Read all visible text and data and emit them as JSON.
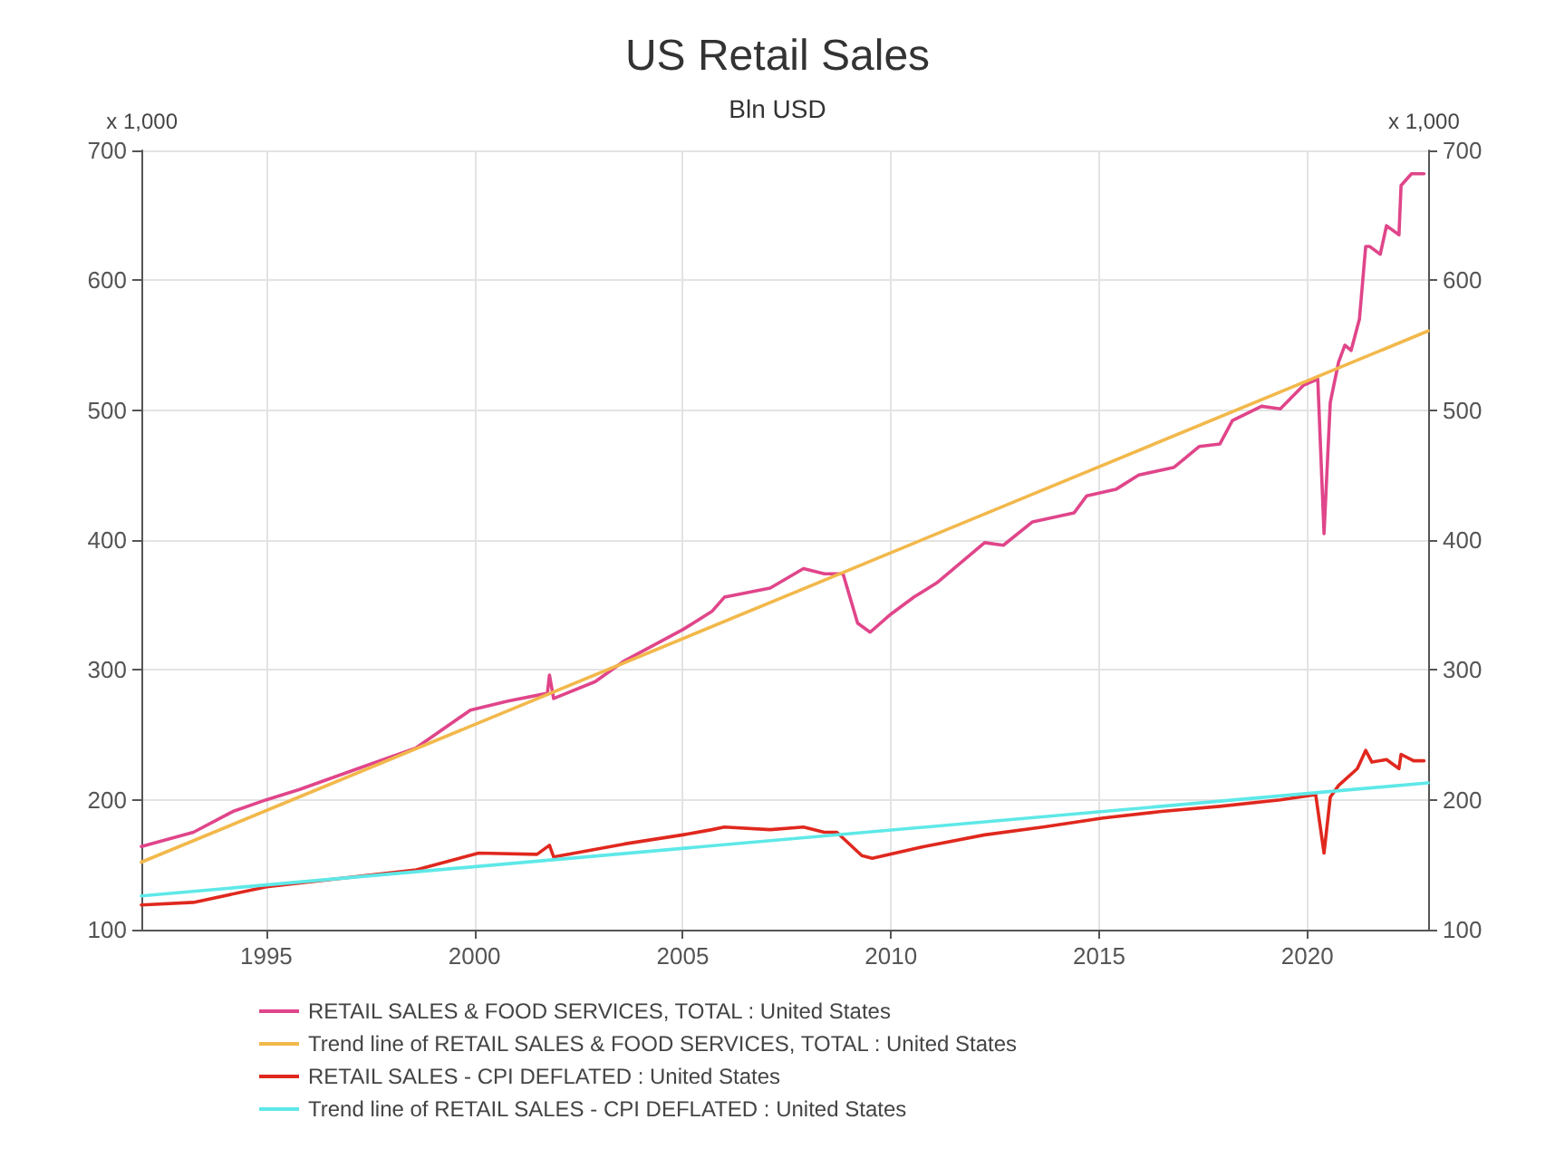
{
  "chart_data": {
    "type": "line",
    "title": "US Retail Sales",
    "subtitle": "Bln USD",
    "ylabel": "x 1,000",
    "y2label": "x 1,000",
    "xlim": [
      1992,
      2022.9
    ],
    "xticks": [
      1995,
      2000,
      2005,
      2010,
      2015,
      2020
    ],
    "ylim": [
      100,
      700
    ],
    "yticks": [
      100,
      200,
      300,
      400,
      500,
      600,
      700
    ],
    "y2lim": [
      100,
      700
    ],
    "y2ticks": [
      100,
      200,
      300,
      400,
      500,
      600,
      700
    ],
    "grid": true,
    "legend": "bottom",
    "marker": "none",
    "line_style": "solid",
    "series": [
      {
        "name": "RETAIL SALES & FOOD SERVICES, TOTAL : United States",
        "color": "#e0458a",
        "x": [
          1992,
          1993.25,
          1994.2,
          1995,
          1995.8,
          1997.2,
          1998.6,
          1999.9,
          2000.8,
          2001.75,
          2001.8,
          2001.9,
          2002.9,
          2003.6,
          2005,
          2005.7,
          2006,
          2007.1,
          2007.9,
          2008.4,
          2008.85,
          2009.2,
          2009.5,
          2010,
          2010.55,
          2011.1,
          2012.25,
          2012.7,
          2013.4,
          2014.4,
          2014.7,
          2015.4,
          2015.95,
          2016.8,
          2017.4,
          2017.9,
          2018.2,
          2018.9,
          2019.35,
          2019.9,
          2020.25,
          2020.4,
          2020.55,
          2020.75,
          2020.9,
          2021.05,
          2021.25,
          2021.4,
          2021.5,
          2021.75,
          2021.9,
          2022.2,
          2022.25,
          2022.5,
          2022.8
        ],
        "values": [
          164,
          175,
          191,
          200,
          208,
          224,
          240,
          269,
          276,
          282,
          296,
          278,
          291,
          307,
          331,
          345,
          356,
          363,
          378,
          374,
          374,
          336,
          329,
          343,
          356,
          367,
          398,
          396,
          414,
          421,
          434,
          439,
          450,
          456,
          472,
          474,
          492,
          503,
          501,
          519,
          524,
          405,
          506,
          537,
          550,
          546,
          570,
          626,
          626,
          620,
          642,
          635,
          673,
          682,
          682
        ]
      },
      {
        "name": "Trend line of RETAIL SALES & FOOD SERVICES, TOTAL : United States",
        "color": "#f2b84b",
        "x": [
          1992,
          2022.9
        ],
        "values": [
          152,
          561
        ]
      },
      {
        "name": "RETAIL SALES - CPI DEFLATED : United States",
        "color": "#e0281e",
        "x": [
          1992,
          1993.25,
          1995,
          1997.2,
          1998.6,
          2000.1,
          2001.5,
          2001.8,
          2001.9,
          2003.6,
          2005,
          2005.7,
          2006,
          2007.1,
          2007.9,
          2008.4,
          2008.7,
          2009.3,
          2009.55,
          2010.8,
          2012.25,
          2013.65,
          2015.1,
          2016.5,
          2017.9,
          2019.35,
          2020.2,
          2020.4,
          2020.55,
          2020.75,
          2021.2,
          2021.4,
          2021.55,
          2021.9,
          2022.2,
          2022.25,
          2022.55,
          2022.8
        ],
        "values": [
          119,
          121,
          133,
          141,
          146,
          159,
          158,
          165,
          156,
          166,
          173,
          177,
          179,
          177,
          179,
          175,
          175,
          157,
          155,
          164,
          173,
          179,
          186,
          191,
          195,
          200,
          204,
          159,
          202,
          211,
          224,
          238,
          229,
          231,
          224,
          235,
          230,
          230
        ]
      },
      {
        "name": "Trend line of RETAIL SALES - CPI DEFLATED : United States",
        "color": "#5ee8e8",
        "x": [
          1992,
          2022.9
        ],
        "values": [
          126,
          213
        ]
      }
    ]
  }
}
